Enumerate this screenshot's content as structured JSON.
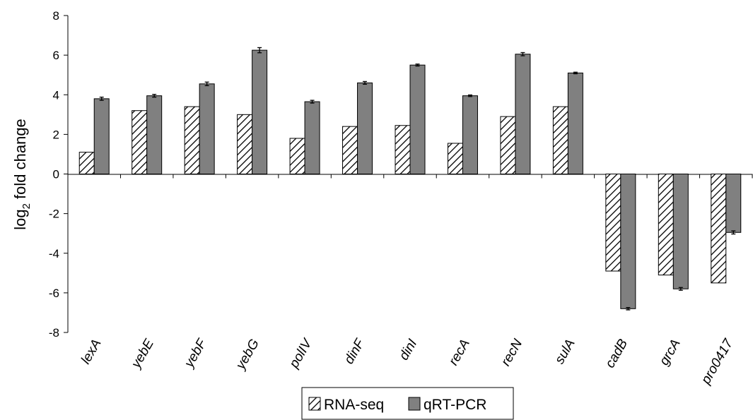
{
  "chart_data": {
    "type": "bar",
    "title": "",
    "xlabel": "",
    "ylabel": "log2 fold change",
    "ylabel_base": "log",
    "ylabel_sub": "2",
    "ylabel_rest": " fold change",
    "ylim": [
      -8,
      8
    ],
    "yticks": [
      8,
      6,
      4,
      2,
      0,
      -2,
      -4,
      -6,
      -8
    ],
    "ytick_labels": [
      "8",
      "6",
      "4",
      "2",
      "0",
      "-2",
      "-4",
      "-6",
      "-8"
    ],
    "grid": false,
    "legend_position": "bottom",
    "categories": [
      "lexA",
      "yebE",
      "yebF",
      "yebG",
      "polIV",
      "dinF",
      "dinI",
      "recA",
      "recN",
      "sulA",
      "cadB",
      "grcA",
      "pro0417"
    ],
    "series": [
      {
        "name": "RNA-seq",
        "pattern": "diagonal-hatch",
        "color": "#ffffff",
        "values": [
          1.1,
          3.2,
          3.4,
          3.0,
          1.8,
          2.4,
          2.45,
          1.55,
          2.9,
          3.4,
          -4.9,
          -5.1,
          -5.5
        ]
      },
      {
        "name": "qRT-PCR",
        "pattern": "solid",
        "color": "#808080",
        "values": [
          3.8,
          3.95,
          4.55,
          6.25,
          3.65,
          4.6,
          5.5,
          3.95,
          6.05,
          5.1,
          -6.8,
          -5.8,
          -2.95
        ],
        "errors": [
          0.08,
          0.07,
          0.09,
          0.13,
          0.07,
          0.07,
          0.05,
          0.04,
          0.08,
          0.04,
          0.06,
          0.07,
          0.08
        ]
      }
    ]
  }
}
